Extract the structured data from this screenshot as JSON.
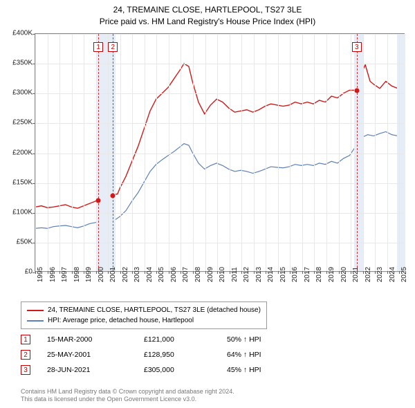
{
  "title": {
    "line1": "24, TREMAINE CLOSE, HARTLEPOOL, TS27 3LE",
    "line2": "Price paid vs. HM Land Registry's House Price Index (HPI)"
  },
  "chart": {
    "type": "line",
    "background_color": "#ffffff",
    "grid_color": "#e8e8e8",
    "border_color": "#888888",
    "xlim": [
      1995,
      2025.5
    ],
    "ylim": [
      0,
      400000
    ],
    "y_ticks": [
      0,
      50000,
      100000,
      150000,
      200000,
      250000,
      300000,
      350000,
      400000
    ],
    "y_tick_labels": [
      "£0",
      "£50K",
      "£100K",
      "£150K",
      "£200K",
      "£250K",
      "£300K",
      "£350K",
      "£400K"
    ],
    "x_ticks": [
      1995,
      1996,
      1997,
      1998,
      1999,
      2000,
      2001,
      2002,
      2003,
      2004,
      2005,
      2006,
      2007,
      2008,
      2009,
      2010,
      2011,
      2012,
      2013,
      2014,
      2015,
      2016,
      2017,
      2018,
      2019,
      2020,
      2021,
      2022,
      2023,
      2024,
      2025
    ],
    "label_fontsize": 10,
    "series": [
      {
        "name": "price_paid",
        "label": "24, TREMAINE CLOSE, HARTLEPOOL, TS27 3LE (detached house)",
        "color": "#d11919",
        "line_width": 1.4,
        "data": [
          [
            1995,
            108000
          ],
          [
            1995.5,
            110000
          ],
          [
            1996,
            107000
          ],
          [
            1996.5,
            108000
          ],
          [
            1997,
            110000
          ],
          [
            1997.5,
            112000
          ],
          [
            1998,
            108000
          ],
          [
            1998.5,
            106000
          ],
          [
            1999,
            110000
          ],
          [
            1999.5,
            114000
          ],
          [
            2000,
            118000
          ],
          [
            2000.2,
            121000
          ],
          [
            2000.5,
            120000
          ],
          [
            2001,
            124000
          ],
          [
            2001.4,
            128950
          ],
          [
            2001.8,
            130000
          ],
          [
            2002,
            140000
          ],
          [
            2002.5,
            160000
          ],
          [
            2003,
            185000
          ],
          [
            2003.5,
            210000
          ],
          [
            2004,
            240000
          ],
          [
            2004.5,
            270000
          ],
          [
            2005,
            290000
          ],
          [
            2005.5,
            300000
          ],
          [
            2006,
            310000
          ],
          [
            2006.5,
            325000
          ],
          [
            2007,
            340000
          ],
          [
            2007.3,
            350000
          ],
          [
            2007.7,
            345000
          ],
          [
            2008,
            320000
          ],
          [
            2008.5,
            285000
          ],
          [
            2009,
            265000
          ],
          [
            2009.5,
            280000
          ],
          [
            2010,
            290000
          ],
          [
            2010.5,
            285000
          ],
          [
            2011,
            275000
          ],
          [
            2011.5,
            268000
          ],
          [
            2012,
            270000
          ],
          [
            2012.5,
            272000
          ],
          [
            2013,
            268000
          ],
          [
            2013.5,
            272000
          ],
          [
            2014,
            278000
          ],
          [
            2014.5,
            282000
          ],
          [
            2015,
            280000
          ],
          [
            2015.5,
            278000
          ],
          [
            2016,
            280000
          ],
          [
            2016.5,
            285000
          ],
          [
            2017,
            282000
          ],
          [
            2017.5,
            285000
          ],
          [
            2018,
            282000
          ],
          [
            2018.5,
            288000
          ],
          [
            2019,
            285000
          ],
          [
            2019.5,
            295000
          ],
          [
            2020,
            292000
          ],
          [
            2020.5,
            300000
          ],
          [
            2021,
            305000
          ],
          [
            2021.5,
            305000
          ],
          [
            2022,
            335000
          ],
          [
            2022.3,
            348000
          ],
          [
            2022.7,
            320000
          ],
          [
            2023,
            315000
          ],
          [
            2023.5,
            308000
          ],
          [
            2024,
            320000
          ],
          [
            2024.5,
            312000
          ],
          [
            2025,
            308000
          ]
        ]
      },
      {
        "name": "hpi",
        "label": "HPI: Average price, detached house, Hartlepool",
        "color": "#5b7fb8",
        "line_width": 1.2,
        "data": [
          [
            1995,
            72000
          ],
          [
            1995.5,
            73000
          ],
          [
            1996,
            72000
          ],
          [
            1996.5,
            75000
          ],
          [
            1997,
            76000
          ],
          [
            1997.5,
            77000
          ],
          [
            1998,
            75000
          ],
          [
            1998.5,
            73000
          ],
          [
            1999,
            76000
          ],
          [
            1999.5,
            80000
          ],
          [
            2000,
            82000
          ],
          [
            2000.5,
            84000
          ],
          [
            2001,
            86000
          ],
          [
            2001.5,
            85000
          ],
          [
            2002,
            92000
          ],
          [
            2002.5,
            102000
          ],
          [
            2003,
            118000
          ],
          [
            2003.5,
            132000
          ],
          [
            2004,
            150000
          ],
          [
            2004.5,
            168000
          ],
          [
            2005,
            180000
          ],
          [
            2005.5,
            188000
          ],
          [
            2006,
            195000
          ],
          [
            2006.5,
            202000
          ],
          [
            2007,
            210000
          ],
          [
            2007.3,
            215000
          ],
          [
            2007.7,
            212000
          ],
          [
            2008,
            200000
          ],
          [
            2008.5,
            182000
          ],
          [
            2009,
            172000
          ],
          [
            2009.5,
            178000
          ],
          [
            2010,
            182000
          ],
          [
            2010.5,
            178000
          ],
          [
            2011,
            172000
          ],
          [
            2011.5,
            168000
          ],
          [
            2012,
            170000
          ],
          [
            2012.5,
            168000
          ],
          [
            2013,
            165000
          ],
          [
            2013.5,
            168000
          ],
          [
            2014,
            172000
          ],
          [
            2014.5,
            176000
          ],
          [
            2015,
            175000
          ],
          [
            2015.5,
            174000
          ],
          [
            2016,
            176000
          ],
          [
            2016.5,
            180000
          ],
          [
            2017,
            178000
          ],
          [
            2017.5,
            180000
          ],
          [
            2018,
            178000
          ],
          [
            2018.5,
            182000
          ],
          [
            2019,
            180000
          ],
          [
            2019.5,
            185000
          ],
          [
            2020,
            182000
          ],
          [
            2020.5,
            190000
          ],
          [
            2021,
            195000
          ],
          [
            2021.5,
            210000
          ],
          [
            2022,
            225000
          ],
          [
            2022.5,
            230000
          ],
          [
            2023,
            228000
          ],
          [
            2023.5,
            232000
          ],
          [
            2024,
            235000
          ],
          [
            2024.5,
            230000
          ],
          [
            2025,
            228000
          ]
        ]
      }
    ],
    "marker_bands": [
      {
        "x_start": 2000.0,
        "x_end": 2001.6,
        "color": "#e6edf7"
      },
      {
        "x_start": 2021.3,
        "x_end": 2022.0,
        "color": "#e6edf7"
      },
      {
        "x_start": 2024.8,
        "x_end": 2025.5,
        "color": "#e6edf7"
      }
    ],
    "marker_lines": [
      {
        "x": 2000.2,
        "color": "#d33333"
      },
      {
        "x": 2001.4,
        "color": "#d33333"
      },
      {
        "x": 2021.5,
        "color": "#d33333"
      }
    ],
    "marker_labels": [
      {
        "num": "1",
        "x": 2000.2,
        "y_top": 12
      },
      {
        "num": "2",
        "x": 2001.4,
        "y_top": 12
      },
      {
        "num": "3",
        "x": 2021.5,
        "y_top": 12
      }
    ],
    "marker_points": [
      {
        "x": 2000.2,
        "y": 121000
      },
      {
        "x": 2001.4,
        "y": 128950
      },
      {
        "x": 2021.5,
        "y": 305000
      }
    ]
  },
  "legend": {
    "items": [
      {
        "color": "#d11919",
        "label": "24, TREMAINE CLOSE, HARTLEPOOL, TS27 3LE (detached house)"
      },
      {
        "color": "#5b7fb8",
        "label": "HPI: Average price, detached house, Hartlepool"
      }
    ]
  },
  "sales": [
    {
      "num": "1",
      "date": "15-MAR-2000",
      "price": "£121,000",
      "pct": "50% ↑ HPI"
    },
    {
      "num": "2",
      "date": "25-MAY-2001",
      "price": "£128,950",
      "pct": "64% ↑ HPI"
    },
    {
      "num": "3",
      "date": "28-JUN-2021",
      "price": "£305,000",
      "pct": "45% ↑ HPI"
    }
  ],
  "footer": {
    "line1": "Contains HM Land Registry data © Crown copyright and database right 2024.",
    "line2": "This data is licensed under the Open Government Licence v3.0."
  }
}
